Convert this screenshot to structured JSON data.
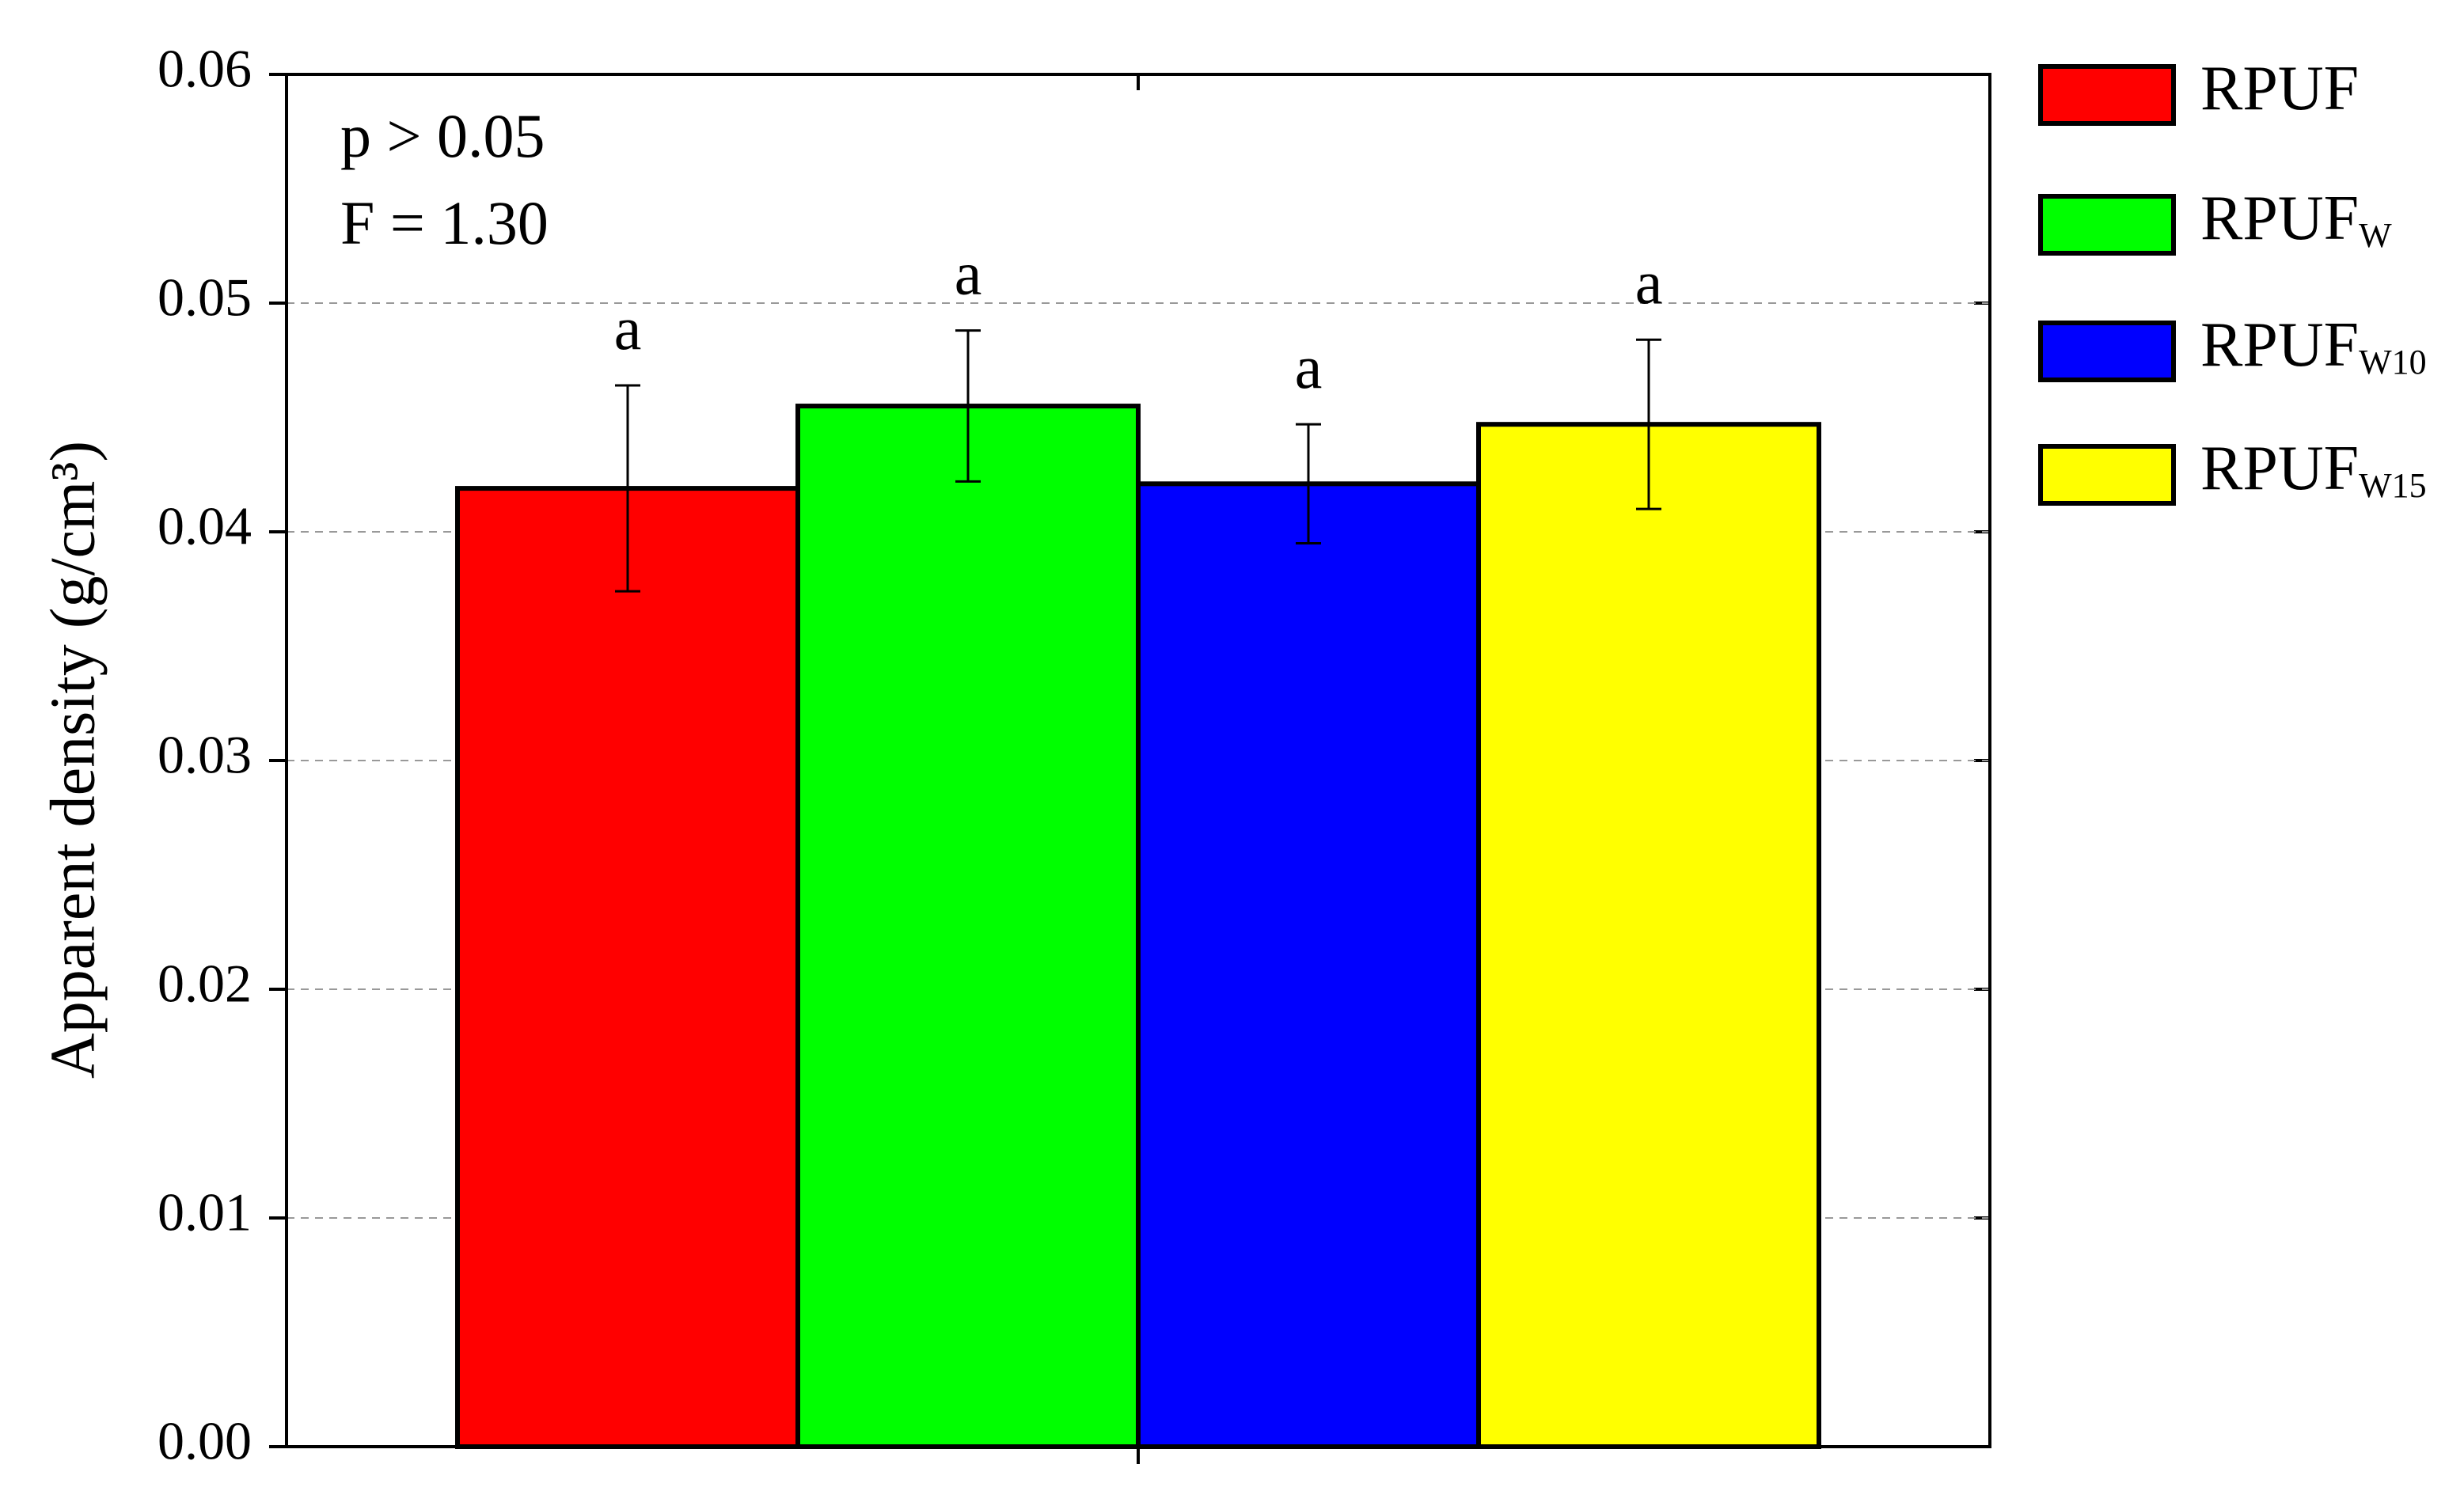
{
  "chart_data": {
    "type": "bar",
    "ylabel": "Apparent density (g/cm³)",
    "annotations": [
      "p > 0.05",
      "F = 1.30"
    ],
    "categories": [
      null
    ],
    "series": [
      {
        "name": "RPUF",
        "subscript": null,
        "color": "#ff0000",
        "values": [
          0.0419
        ],
        "errors": [
          0.0045
        ],
        "letters": [
          "a"
        ]
      },
      {
        "name": "RPUF",
        "subscript": "W",
        "color": "#00ff00",
        "values": [
          0.0455
        ],
        "errors": [
          0.0033
        ],
        "letters": [
          "a"
        ]
      },
      {
        "name": "RPUF",
        "subscript": "W10",
        "color": "#0000ff",
        "values": [
          0.0421
        ],
        "errors": [
          0.0026
        ],
        "letters": [
          "a"
        ]
      },
      {
        "name": "RPUF",
        "subscript": "W15",
        "color": "#ffff00",
        "values": [
          0.0447
        ],
        "errors": [
          0.0037
        ],
        "letters": [
          "a"
        ]
      }
    ],
    "ylim": [
      0,
      0.06
    ],
    "yticks": [
      {
        "value": 0,
        "label": "0.00"
      },
      {
        "value": 0.01,
        "label": "0.01"
      },
      {
        "value": 0.02,
        "label": "0.02"
      },
      {
        "value": 0.03,
        "label": "0.03"
      },
      {
        "value": 0.04,
        "label": "0.04"
      },
      {
        "value": 0.05,
        "label": "0.05"
      },
      {
        "value": 0.06,
        "label": "0.06"
      }
    ],
    "grid": true
  }
}
